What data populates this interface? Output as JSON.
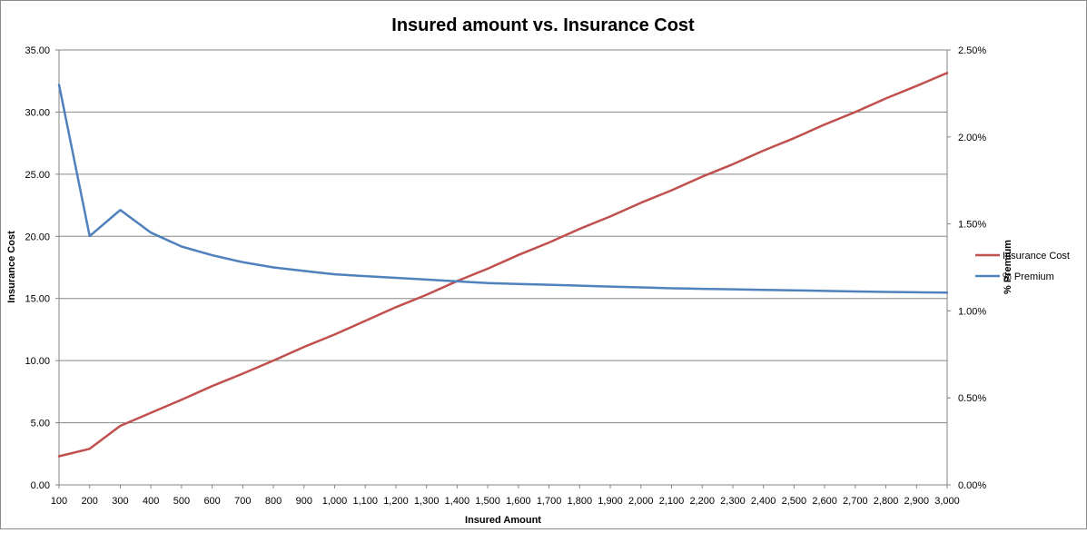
{
  "chart_data": {
    "type": "line",
    "title": "Insured amount vs. Insurance Cost",
    "xlabel": "Insured Amount",
    "ylabel": "Insurance Cost",
    "y2label": "% Premium",
    "x": [
      100,
      200,
      300,
      400,
      500,
      600,
      700,
      800,
      900,
      1000,
      1100,
      1200,
      1300,
      1400,
      1500,
      1600,
      1700,
      1800,
      1900,
      2000,
      2100,
      2200,
      2300,
      2400,
      2500,
      2600,
      2700,
      2800,
      2900,
      3000
    ],
    "x_tick_labels": [
      "100",
      "200",
      "300",
      "400",
      "500",
      "600",
      "700",
      "800",
      "900",
      "1,000",
      "1,100",
      "1,200",
      "1,300",
      "1,400",
      "1,500",
      "1,600",
      "1,700",
      "1,800",
      "1,900",
      "2,000",
      "2,100",
      "2,200",
      "2,300",
      "2,400",
      "2,500",
      "2,600",
      "2,700",
      "2,800",
      "2,900",
      "3,000"
    ],
    "ylim": [
      0,
      35
    ],
    "y_tick_labels": [
      "0.00",
      "5.00",
      "10.00",
      "15.00",
      "20.00",
      "25.00",
      "30.00",
      "35.00"
    ],
    "y2lim": [
      0,
      2.5
    ],
    "y2_tick_labels": [
      "0.00%",
      "0.50%",
      "1.00%",
      "1.50%",
      "2.00%",
      "2.50%"
    ],
    "grid": true,
    "legend_position": "right",
    "series": [
      {
        "name": "Insurance Cost",
        "axis": "left",
        "color": "#C0504D",
        "values": [
          2.3,
          2.9,
          4.75,
          5.8,
          6.85,
          7.95,
          8.95,
          10.0,
          11.1,
          12.1,
          13.2,
          14.3,
          15.3,
          16.4,
          17.4,
          18.5,
          19.5,
          20.6,
          21.6,
          22.7,
          23.7,
          24.8,
          25.8,
          26.9,
          27.9,
          29.0,
          30.0,
          31.1,
          32.1,
          33.15
        ]
      },
      {
        "name": "% Premium",
        "axis": "right",
        "color": "#4F81BD",
        "values": [
          2.3,
          1.43,
          1.58,
          1.45,
          1.37,
          1.32,
          1.28,
          1.25,
          1.23,
          1.21,
          1.2,
          1.19,
          1.18,
          1.17,
          1.16,
          1.155,
          1.15,
          1.145,
          1.14,
          1.135,
          1.13,
          1.127,
          1.124,
          1.121,
          1.118,
          1.115,
          1.112,
          1.109,
          1.107,
          1.105
        ]
      }
    ]
  }
}
